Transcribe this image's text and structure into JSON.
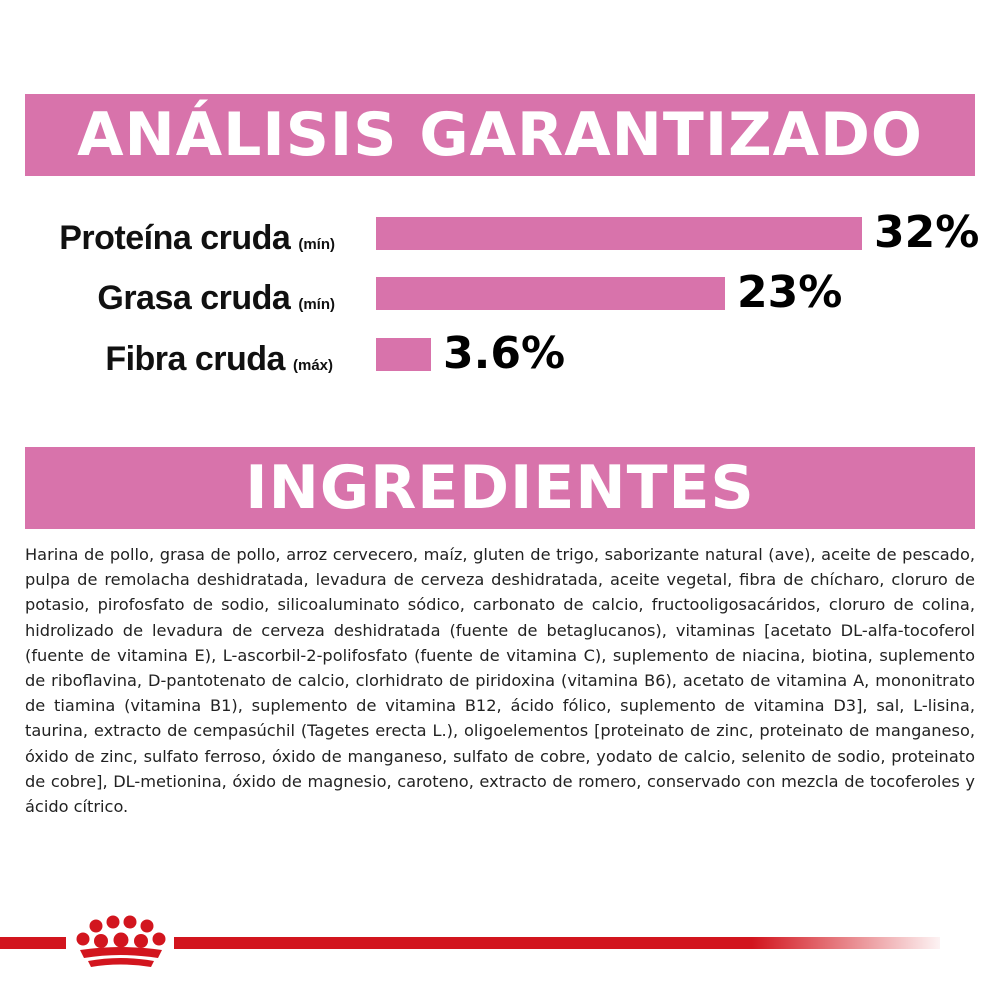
{
  "analysis": {
    "title": "ANÁLISIS GARANTIZADO",
    "nutrients": [
      {
        "name": "Proteína cruda",
        "qualifier": "(mín)",
        "value_label": "32%",
        "percent": 32
      },
      {
        "name": "Grasa cruda",
        "qualifier": "(mín)",
        "value_label": "23%",
        "percent": 23
      },
      {
        "name": "Fibra cruda",
        "qualifier": "(máx)",
        "value_label": "3.6%",
        "percent": 3.6
      }
    ]
  },
  "ingredients": {
    "title": "INGREDIENTES",
    "text": "Harina de pollo, grasa de pollo, arroz cervecero, maíz, gluten de trigo, saborizante natural (ave), aceite de pescado, pulpa de remolacha deshidratada, levadura de cerveza deshidratada, aceite vegetal, fibra de chícharo, cloruro de potasio, pirofosfato de sodio, silicoaluminato sódico, carbonato de calcio, fructooligosacáridos, cloruro de colina, hidrolizado de levadura de cerveza deshidratada (fuente de betaglucanos), vitaminas [acetato DL-alfa-tocoferol (fuente de vitamina E), L-ascorbil-2-polifosfato (fuente de vitamina C), suplemento de niacina, biotina, suplemento de riboflavina, D-pantotenato de calcio, clorhidrato de piridoxina (vitamina B6), acetato de vitamina A, mononitrato de tiamina (vitamina B1), suplemento de vitamina B12, ácido fólico, suplemento de vitamina D3], sal, L-lisina, taurina, extracto de cempasúchil (Tagetes erecta L.), oligoelementos [proteinato de zinc, proteinato de manganeso, óxido de zinc, sulfato ferroso, óxido de manganeso, sulfato de cobre, yodato de calcio, selenito de sodio, proteinato de cobre], DL-metionina, óxido de magnesio, caroteno, extracto de romero, conservado con mezcla de tocoferoles y ácido cítrico."
  },
  "footer": {
    "logo_icon": "crown-icon",
    "line_color": "#d2151e"
  },
  "colors": {
    "accent": "#d873ab",
    "text": "#111111"
  }
}
